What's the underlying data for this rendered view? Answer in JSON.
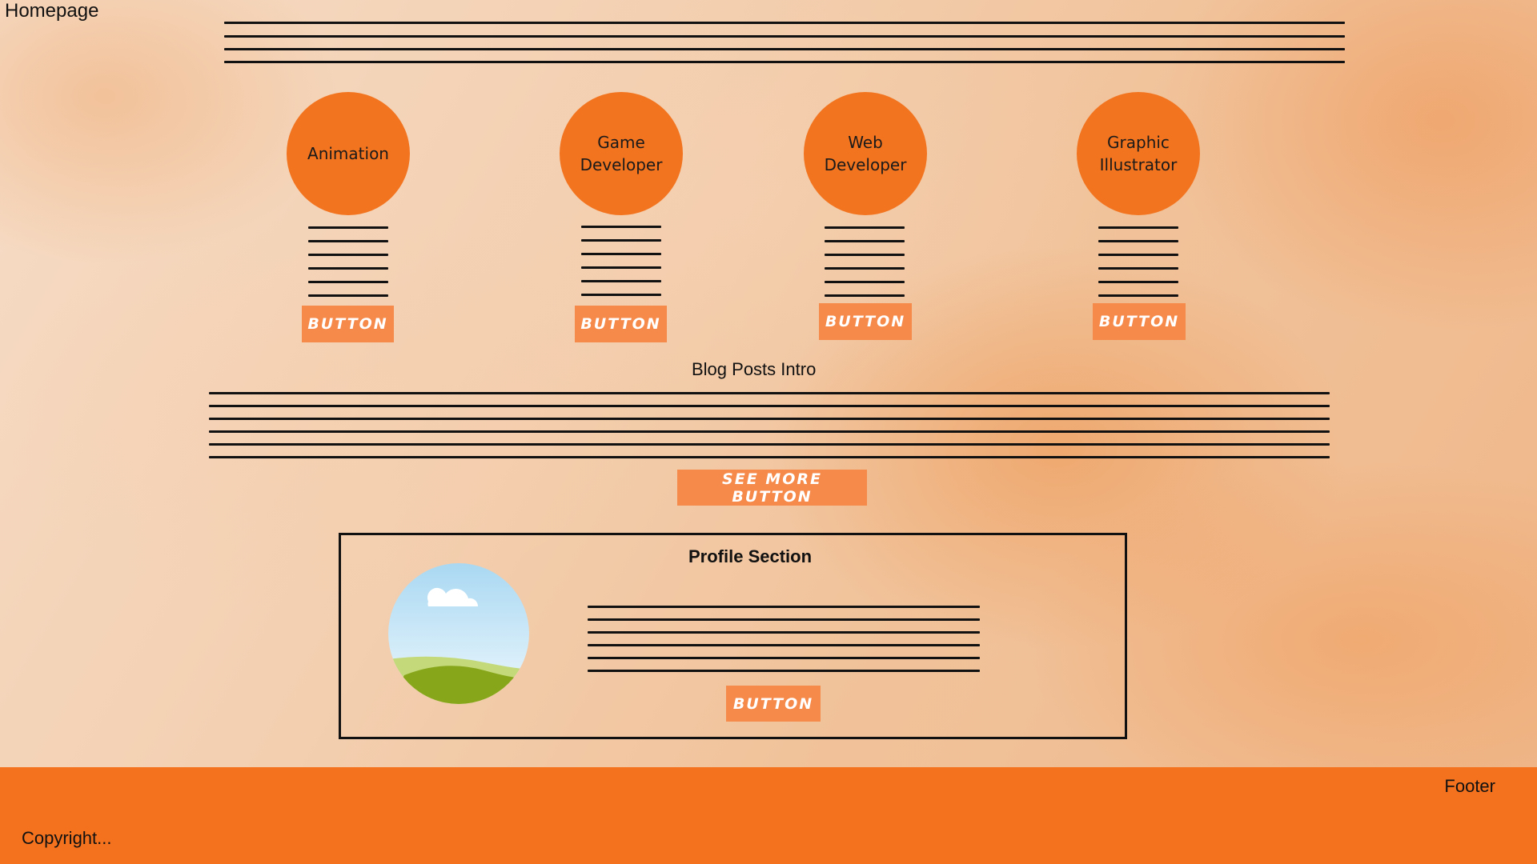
{
  "page": {
    "label": "Homepage"
  },
  "services": [
    {
      "title": "Animation",
      "button": "BUTTON"
    },
    {
      "title": "Game\nDeveloper",
      "button": "BUTTON"
    },
    {
      "title": "Web\nDeveloper",
      "button": "BUTTON"
    },
    {
      "title": "Graphic\nIllustrator",
      "button": "BUTTON"
    }
  ],
  "blog": {
    "intro": "Blog Posts Intro",
    "see_more": "SEE MORE BUTTON"
  },
  "profile": {
    "title": "Profile Section",
    "button": "BUTTON",
    "image_icon": "landscape-image-icon"
  },
  "footer": {
    "label": "Footer",
    "copyright": "Copyright..."
  },
  "colors": {
    "accent": "#f3741f",
    "button": "#f68a4a",
    "footer": "#f4721e"
  }
}
